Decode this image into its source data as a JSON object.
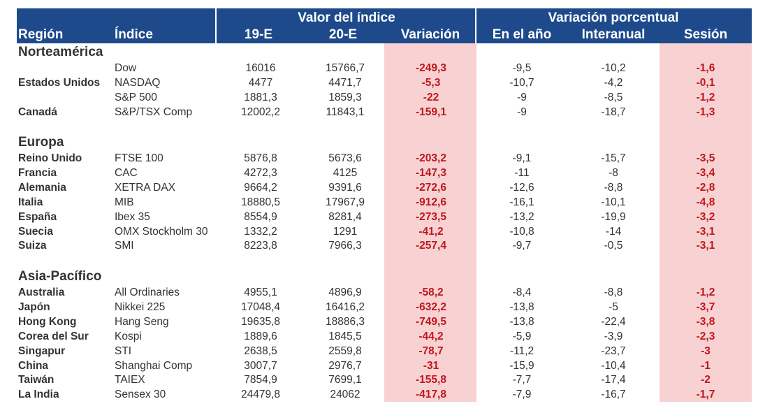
{
  "header": {
    "group_valor": "Valor del índice",
    "group_var": "Variación porcentual",
    "col_region": "Región",
    "col_indice": "Índice",
    "col_19e": "19-E",
    "col_20e": "20-E",
    "col_variacion": "Variación",
    "col_anio": "En el año",
    "col_interanual": "Interanual",
    "col_sesion": "Sesión"
  },
  "sections": [
    {
      "name": "Norteamérica",
      "rows": [
        {
          "region": "",
          "indice": "Dow",
          "v19": "16016",
          "v20": "15766,7",
          "variacion": "-249,3",
          "anio": "-9,5",
          "interanual": "-10,2",
          "sesion": "-1,6"
        },
        {
          "region": "Estados Unidos",
          "indice": "NASDAQ",
          "v19": "4477",
          "v20": "4471,7",
          "variacion": "-5,3",
          "anio": "-10,7",
          "interanual": "-4,2",
          "sesion": "-0,1"
        },
        {
          "region": "",
          "indice": "S&P 500",
          "v19": "1881,3",
          "v20": "1859,3",
          "variacion": "-22",
          "anio": "-9",
          "interanual": "-8,5",
          "sesion": "-1,2"
        },
        {
          "region": "Canadá",
          "indice": "S&P/TSX Comp",
          "v19": "12002,2",
          "v20": "11843,1",
          "variacion": "-159,1",
          "anio": "-9",
          "interanual": "-18,7",
          "sesion": "-1,3"
        }
      ]
    },
    {
      "name": "Europa",
      "rows": [
        {
          "region": "Reino Unido",
          "indice": "FTSE 100",
          "v19": "5876,8",
          "v20": "5673,6",
          "variacion": "-203,2",
          "anio": "-9,1",
          "interanual": "-15,7",
          "sesion": "-3,5"
        },
        {
          "region": "Francia",
          "indice": "CAC",
          "v19": "4272,3",
          "v20": "4125",
          "variacion": "-147,3",
          "anio": "-11",
          "interanual": "-8",
          "sesion": "-3,4"
        },
        {
          "region": "Alemania",
          "indice": "XETRA DAX",
          "v19": "9664,2",
          "v20": "9391,6",
          "variacion": "-272,6",
          "anio": "-12,6",
          "interanual": "-8,8",
          "sesion": "-2,8"
        },
        {
          "region": "Italia",
          "indice": "MIB",
          "v19": "18880,5",
          "v20": "17967,9",
          "variacion": "-912,6",
          "anio": "-16,1",
          "interanual": "-10,1",
          "sesion": "-4,8"
        },
        {
          "region": "España",
          "indice": "Ibex 35",
          "v19": "8554,9",
          "v20": "8281,4",
          "variacion": "-273,5",
          "anio": "-13,2",
          "interanual": "-19,9",
          "sesion": "-3,2"
        },
        {
          "region": "Suecia",
          "indice": "OMX Stockholm 30",
          "v19": "1332,2",
          "v20": "1291",
          "variacion": "-41,2",
          "anio": "-10,8",
          "interanual": "-14",
          "sesion": "-3,1"
        },
        {
          "region": "Suiza",
          "indice": "SMI",
          "v19": "8223,8",
          "v20": "7966,3",
          "variacion": "-257,4",
          "anio": "-9,7",
          "interanual": "-0,5",
          "sesion": "-3,1"
        }
      ]
    },
    {
      "name": "Asia-Pacífico",
      "rows": [
        {
          "region": "Australia",
          "indice": "All Ordinaries",
          "v19": "4955,1",
          "v20": "4896,9",
          "variacion": "-58,2",
          "anio": "-8,4",
          "interanual": "-8,8",
          "sesion": "-1,2"
        },
        {
          "region": "Japón",
          "indice": "Nikkei 225",
          "v19": "17048,4",
          "v20": "16416,2",
          "variacion": "-632,2",
          "anio": "-13,8",
          "interanual": "-5",
          "sesion": "-3,7"
        },
        {
          "region": "Hong Kong",
          "indice": "Hang Seng",
          "v19": "19635,8",
          "v20": "18886,3",
          "variacion": "-749,5",
          "anio": "-13,8",
          "interanual": "-22,4",
          "sesion": "-3,8"
        },
        {
          "region": "Corea del Sur",
          "indice": "Kospi",
          "v19": "1889,6",
          "v20": "1845,5",
          "variacion": "-44,2",
          "anio": "-5,9",
          "interanual": "-3,9",
          "sesion": "-2,3"
        },
        {
          "region": "Singapur",
          "indice": "STI",
          "v19": "2638,5",
          "v20": "2559,8",
          "variacion": "-78,7",
          "anio": "-11,2",
          "interanual": "-23,7",
          "sesion": "-3"
        },
        {
          "region": "China",
          "indice": "Shanghai Comp",
          "v19": "3007,7",
          "v20": "2976,7",
          "variacion": "-31",
          "anio": "-15,9",
          "interanual": "-10,4",
          "sesion": "-1"
        },
        {
          "region": "Taiwán",
          "indice": "TAIEX",
          "v19": "7854,9",
          "v20": "7699,1",
          "variacion": "-155,8",
          "anio": "-7,7",
          "interanual": "-17,4",
          "sesion": "-2"
        },
        {
          "region": "La India",
          "indice": "Sensex 30",
          "v19": "24479,8",
          "v20": "24062",
          "variacion": "-417,8",
          "anio": "-7,9",
          "interanual": "-16,7",
          "sesion": "-1,7"
        }
      ]
    }
  ],
  "colors": {
    "header_bg": "#1e4a8c",
    "highlight_bg": "#f8d2d2",
    "negative_text": "#c0161c"
  }
}
